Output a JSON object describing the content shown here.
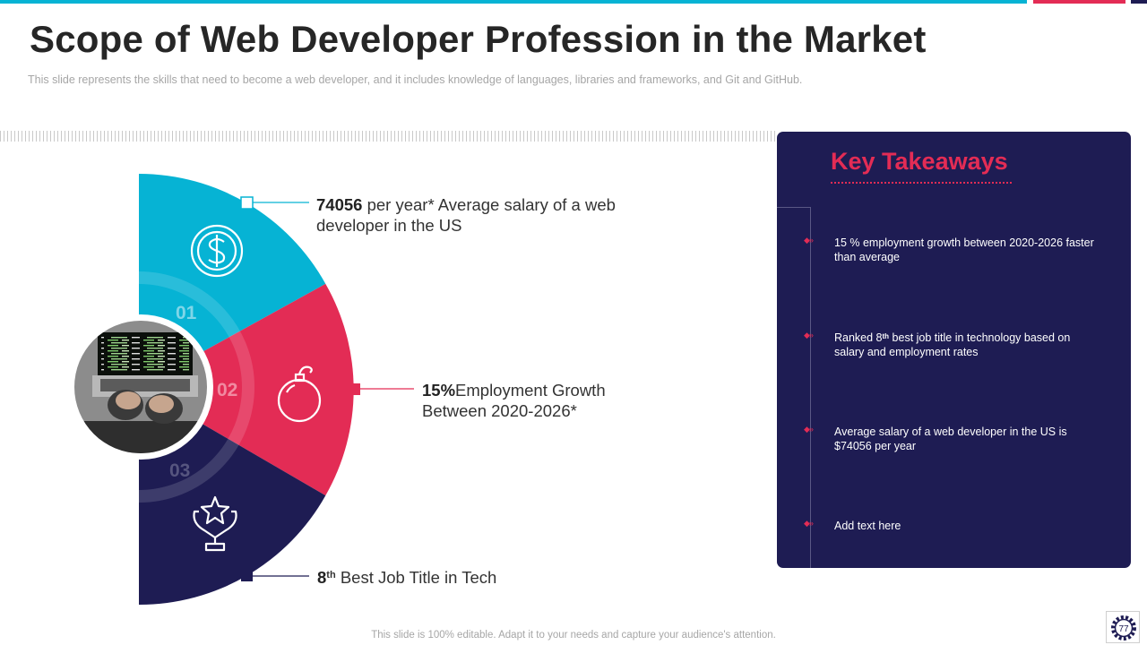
{
  "colors": {
    "teal": "#06b3d4",
    "pink": "#e32c55",
    "navy": "#1e1c53"
  },
  "header": {
    "title": "Scope of Web Developer Profession in the Market",
    "subtitle": "This slide represents the skills that need to become a web developer,  and it includes knowledge  of languages,  libraries and frameworks,  and Git and GitHub."
  },
  "segments": [
    {
      "number": "01",
      "icon": "dollar-icon"
    },
    {
      "number": "02",
      "icon": "bomb-icon"
    },
    {
      "number": "03",
      "icon": "trophy-icon"
    }
  ],
  "callouts": {
    "salary": {
      "value": "74056",
      "text": " per year* Average salary of a web developer in the US"
    },
    "growth": {
      "value": "15%",
      "text": "Employment Growth Between 2020-2026*"
    },
    "rank": {
      "num": "8",
      "sup": "th",
      "text": " Best Job Title in Tech"
    }
  },
  "takeaways": {
    "title": "Key Takeaways",
    "items": [
      {
        "text": "15 % employment growth between 2020-2026 faster than average"
      },
      {
        "pre": "Ranked 8",
        "sup": "th",
        "post": " best job title in technology based on salary and employment rates"
      },
      {
        "text": "Average  salary of a web developer  in the US is $74056  per year"
      },
      {
        "text": "Add text here"
      }
    ]
  },
  "footer": "This slide is 100% editable. Adapt it to your needs and capture your audience's attention.",
  "page_number": "77"
}
